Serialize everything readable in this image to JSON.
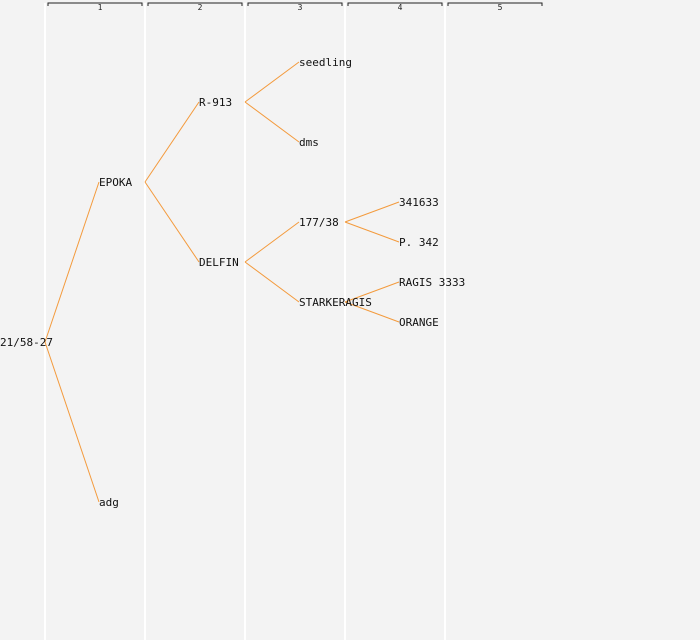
{
  "generations": [
    "1",
    "2",
    "3",
    "4",
    "5"
  ],
  "colors": {
    "background": "#f3f3f3",
    "column_divider": "#ffffff",
    "bracket": "#222222",
    "branch_line": "#f39a3c",
    "text": "#111111"
  },
  "tree": {
    "label": "21/58-27",
    "children": [
      {
        "label": "EPOKA",
        "children": [
          {
            "label": "R-913",
            "children": [
              {
                "label": "seedling"
              },
              {
                "label": "dms"
              }
            ]
          },
          {
            "label": "DELFIN",
            "children": [
              {
                "label": "177/38",
                "children": [
                  {
                    "label": "341633"
                  },
                  {
                    "label": "P. 342"
                  }
                ]
              },
              {
                "label": "STARKERAGIS",
                "children": [
                  {
                    "label": "RAGIS 3333"
                  },
                  {
                    "label": "ORANGE"
                  }
                ]
              }
            ]
          }
        ]
      },
      {
        "label": "adg"
      }
    ]
  }
}
